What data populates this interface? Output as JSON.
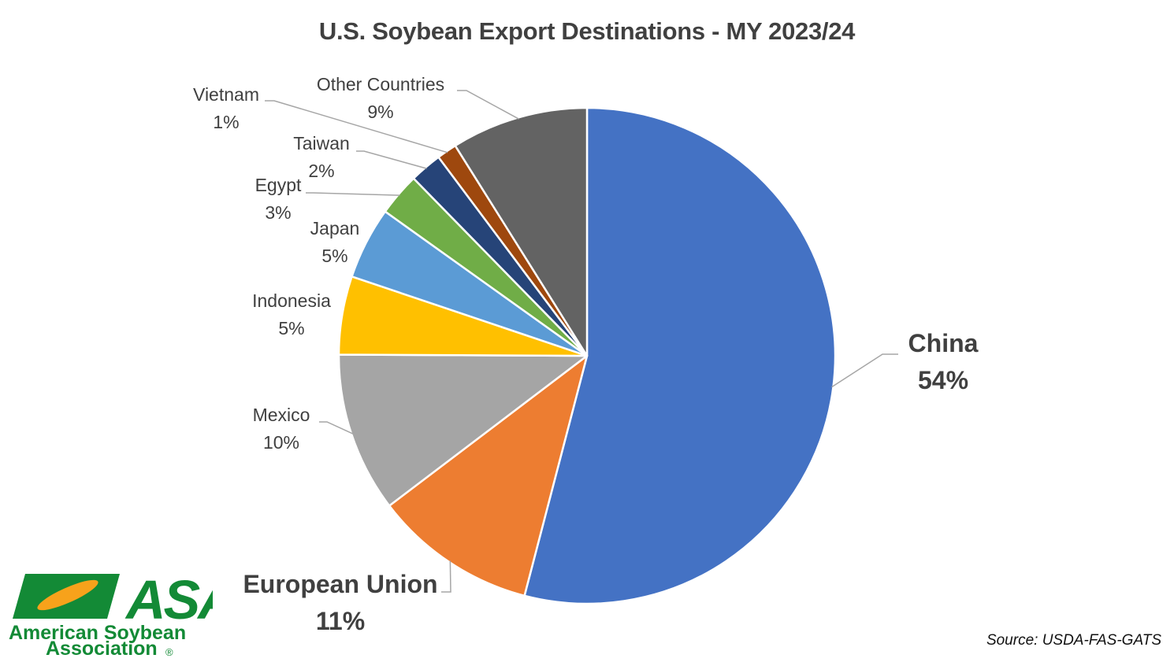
{
  "header": {
    "title": "U.S. Soybean Export Destinations - MY 2023/24"
  },
  "chart_data": {
    "type": "pie",
    "title": "U.S. Soybean Export Destinations - MY 2023/24",
    "start": "12 o'clock",
    "direction": "clockwise",
    "slices": [
      {
        "label": "China",
        "value_label": "54%",
        "value": 54.0,
        "color": "#4472C4",
        "emphasis": true
      },
      {
        "label": "European Union",
        "value_label": "11%",
        "value": 10.6,
        "color": "#ED7D31",
        "emphasis": true
      },
      {
        "label": "Mexico",
        "value_label": "10%",
        "value": 10.4,
        "color": "#A5A5A5",
        "emphasis": false
      },
      {
        "label": "Indonesia",
        "value_label": "5%",
        "value": 5.1,
        "color": "#FFC000",
        "emphasis": false
      },
      {
        "label": "Japan",
        "value_label": "5%",
        "value": 4.7,
        "color": "#5B9BD5",
        "emphasis": false
      },
      {
        "label": "Egypt",
        "value_label": "3%",
        "value": 2.8,
        "color": "#70AD47",
        "emphasis": false
      },
      {
        "label": "Taiwan",
        "value_label": "2%",
        "value": 2.1,
        "color": "#264478",
        "emphasis": false
      },
      {
        "label": "Vietnam",
        "value_label": "1%",
        "value": 1.3,
        "color": "#9E480E",
        "emphasis": false
      },
      {
        "label": "Other Countries",
        "value_label": "9%",
        "value": 8.9,
        "color": "#636363",
        "emphasis": false
      }
    ],
    "data_labels": "outside with leader lines",
    "legend": "none"
  },
  "footer": {
    "source": "Source: USDA-FAS-GATS"
  },
  "logo": {
    "brand_text": "ASA",
    "line1": "American Soybean",
    "line2": "Association",
    "registered": "®",
    "green": "#138A36",
    "orange": "#F7A21B"
  }
}
